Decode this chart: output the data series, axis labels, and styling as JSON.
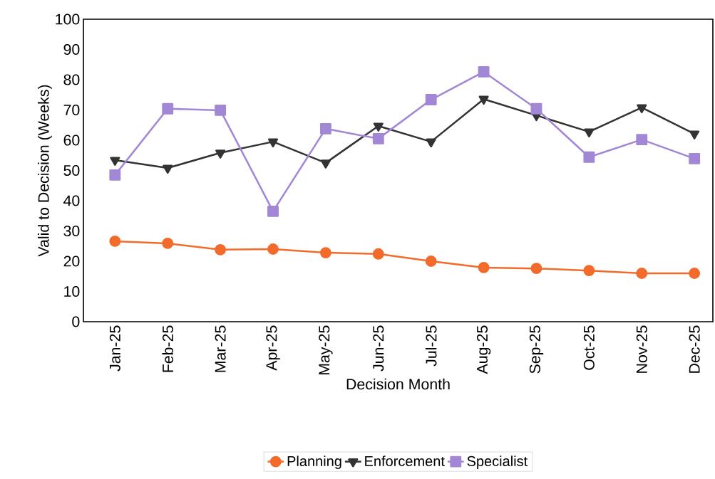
{
  "chart_data": {
    "type": "line",
    "xlabel": "Decision Month",
    "ylabel": "Valid to Decision (Weeks)",
    "categories": [
      "Jan-25",
      "Feb-25",
      "Mar-25",
      "Apr-25",
      "May-25",
      "Jun-25",
      "Jul-25",
      "Aug-25",
      "Sep-25",
      "Oct-25",
      "Nov-25",
      "Dec-25"
    ],
    "series": [
      {
        "name": "Planning",
        "color": "#f26b2a",
        "marker": "circle",
        "values": [
          26.6,
          25.9,
          23.8,
          24.0,
          22.8,
          22.4,
          20.0,
          17.9,
          17.6,
          16.9,
          16.0,
          16.0
        ]
      },
      {
        "name": "Enforcement",
        "color": "#333333",
        "marker": "triangle",
        "values": [
          53.4,
          50.8,
          55.8,
          59.5,
          52.5,
          64.7,
          59.5,
          73.6,
          68.2,
          62.8,
          70.8,
          62.1
        ]
      },
      {
        "name": "Specialist",
        "color": "#a287d6",
        "marker": "square",
        "values": [
          48.5,
          70.4,
          69.9,
          36.5,
          63.8,
          60.5,
          73.4,
          82.6,
          70.4,
          54.4,
          60.2,
          53.9
        ]
      }
    ],
    "ylim": [
      0,
      100
    ],
    "yticks": [
      0,
      10,
      20,
      30,
      40,
      50,
      60,
      70,
      80,
      90,
      100
    ],
    "grid": false,
    "legend": "bottom",
    "line_style": "solid"
  }
}
